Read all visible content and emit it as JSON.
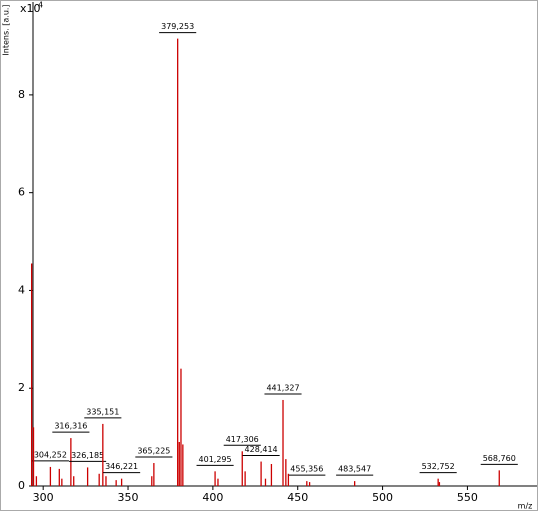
{
  "chart_data": {
    "type": "stem",
    "y_label": "Intens. [a.u.]",
    "x_label": "m/z",
    "y_scale_label": "x10",
    "y_scale_exp": "4",
    "xlim": [
      294,
      591
    ],
    "xticks": [
      300,
      350,
      400,
      450,
      500,
      550
    ],
    "ylim": [
      0,
      9.9
    ],
    "yticks": [
      0,
      2,
      4,
      6,
      8
    ],
    "color": "#cc0000",
    "series": [
      {
        "x": [
          304.252,
          316.316,
          326.185,
          335.151,
          346.221,
          365.225,
          379.253,
          401.295,
          417.306,
          428.414,
          441.327,
          455.356,
          483.547,
          532.752,
          568.76
        ],
        "values": [
          0.39,
          0.98,
          0.38,
          1.27,
          0.15,
          0.47,
          9.15,
          0.3,
          0.71,
          0.5,
          1.76,
          0.1,
          0.1,
          0.15,
          0.32
        ],
        "x_labels": [
          "304,252",
          "316,316",
          "326,185",
          "335,151",
          "346,221",
          "365,225",
          "379,253",
          "401,295",
          "417,306",
          "428,414",
          "441,327",
          "455,356",
          "483,547",
          "532,752",
          "568,760"
        ]
      },
      {
        "x": [
          293.2,
          294.3,
          296,
          309.5,
          311,
          318,
          333,
          337,
          343,
          364,
          380.2,
          381.2,
          382.3,
          403,
          419,
          431,
          434.5,
          443,
          444.5,
          457,
          533.5
        ],
        "values": [
          4.55,
          1.2,
          0.2,
          0.35,
          0.15,
          0.2,
          0.25,
          0.2,
          0.12,
          0.2,
          0.9,
          2.4,
          0.85,
          0.15,
          0.3,
          0.15,
          0.45,
          0.55,
          0.25,
          0.08,
          0.08
        ]
      }
    ]
  }
}
